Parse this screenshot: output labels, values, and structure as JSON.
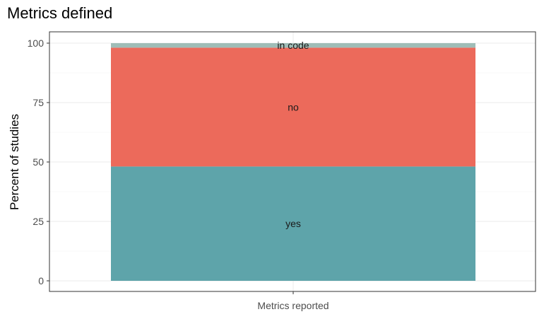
{
  "chart_data": {
    "type": "bar",
    "stacked": true,
    "title": "Metrics defined",
    "xlabel": "",
    "ylabel": "Percent of studies",
    "categories": [
      "Metrics reported"
    ],
    "ylim": [
      0,
      100
    ],
    "yticks": [
      0,
      25,
      50,
      75,
      100
    ],
    "grid": true,
    "legend": "none",
    "series": [
      {
        "name": "yes",
        "values": [
          48.1
        ],
        "color": "#5ea4aa"
      },
      {
        "name": "no",
        "values": [
          50.0
        ],
        "color": "#ec6a5b"
      },
      {
        "name": "in code",
        "values": [
          1.9
        ],
        "color": "#9fbdb7"
      }
    ]
  }
}
